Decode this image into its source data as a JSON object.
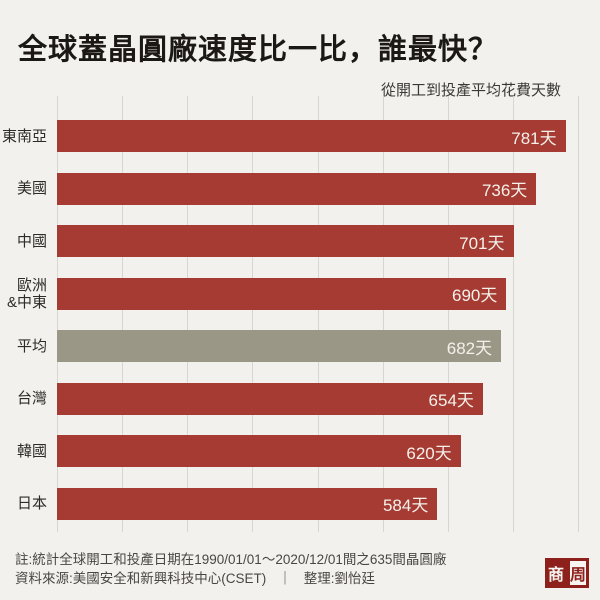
{
  "chart_data": {
    "type": "bar",
    "orientation": "horizontal",
    "title": "全球蓋晶圓廠速度比一比，誰最快？",
    "subtitle": "從開工到投產平均花費天數",
    "categories": [
      "東南亞",
      "美國",
      "中國",
      "歐洲\n&中東",
      "平均",
      "台灣",
      "韓國",
      "日本"
    ],
    "values": [
      781,
      736,
      701,
      690,
      682,
      654,
      620,
      584
    ],
    "value_labels": [
      "781天",
      "736天",
      "701天",
      "690天",
      "682天",
      "654天",
      "620天",
      "584天"
    ],
    "unit": "天",
    "xlim": [
      0,
      800
    ],
    "gridline_interval": 100,
    "grid": true,
    "legend": "none",
    "highlight_index": 4,
    "highlight_meaning": "平均 (average) bar shown in gray, all others dark red"
  },
  "footer": {
    "note": "註:統計全球開工和投產日期在1990/01/01～2020/12/01間之635間晶圓廠",
    "source": "資料來源:美國安全和新興科技中心(CSET)",
    "divider": "｜",
    "editor": "整理:劉怡廷"
  },
  "logo": {
    "left_char": "商",
    "right_char": "周"
  },
  "colors": {
    "background": "#f3f1ee",
    "bar": "#a53b33",
    "highlight_bar": "#9b9787",
    "title_text": "#1b1815",
    "label_text": "#2e2b28",
    "muted_text": "#4a4643",
    "value_text": "#f4f1ea",
    "gridline": "#d8d6d1",
    "logo_red": "#8e201b"
  }
}
